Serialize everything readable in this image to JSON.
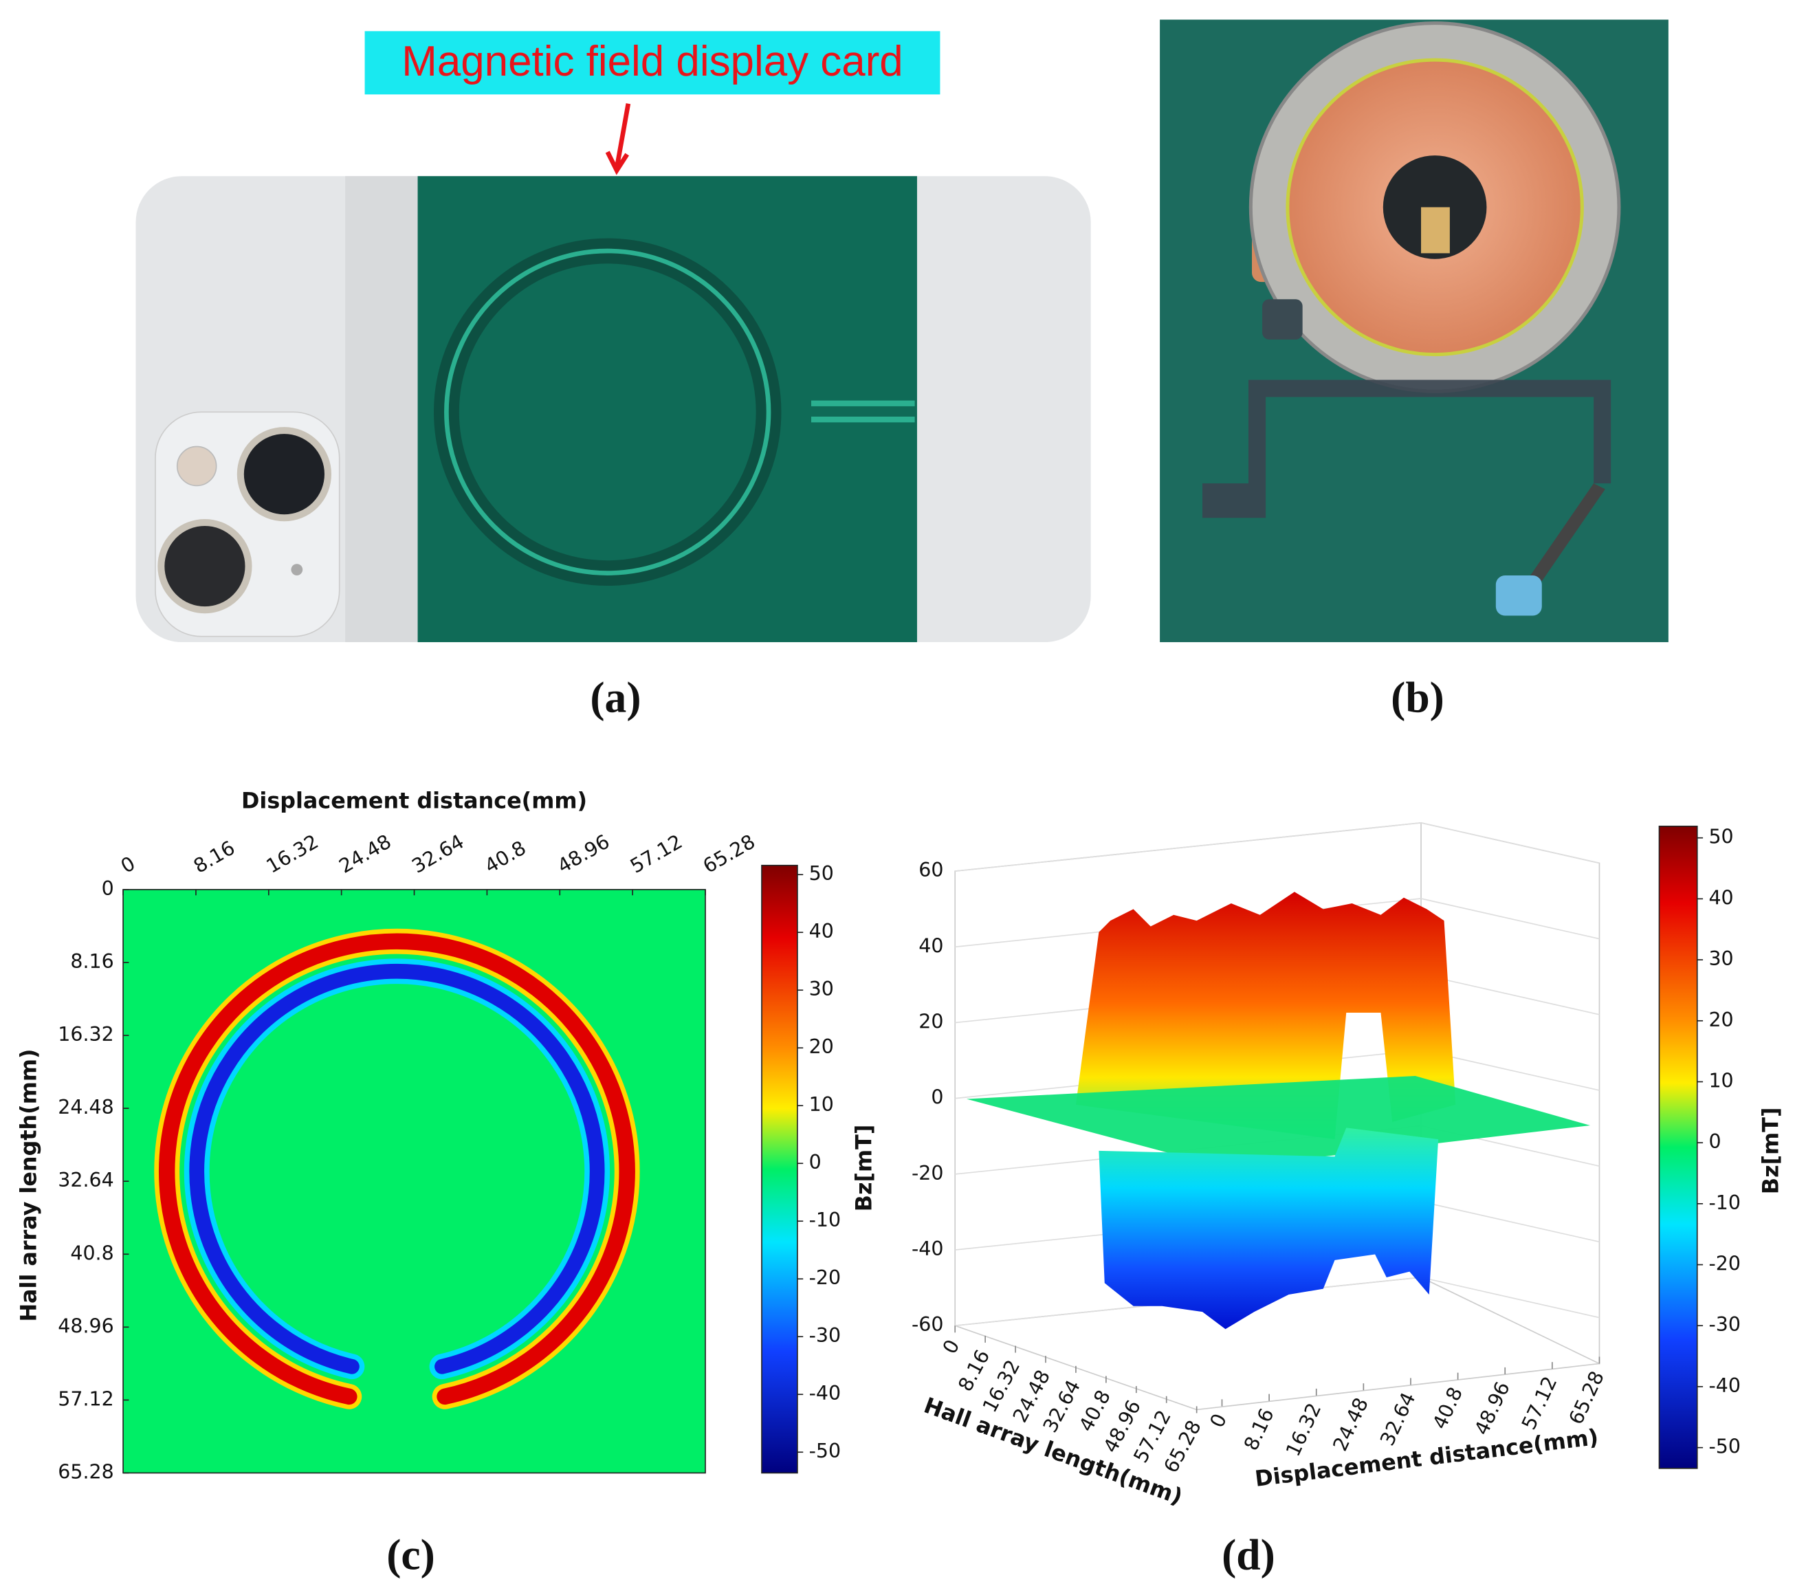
{
  "annotation": "Magnetic field display card",
  "panel_labels": [
    "(a)",
    "(b)",
    "(c)",
    "(d)"
  ],
  "chart_data": [
    {
      "type": "heatmap",
      "x_label": "Displacement distance(mm)",
      "y_label": "Hall array length(mm)",
      "colorbar_label": "Bz[mT]",
      "xlim": [
        0,
        65.28
      ],
      "xticks": [
        0,
        8.16,
        16.32,
        24.48,
        32.64,
        40.8,
        48.96,
        57.12,
        65.28
      ],
      "ylim": [
        0,
        65.28
      ],
      "yticks": [
        0,
        8.16,
        16.32,
        24.48,
        32.64,
        40.8,
        48.96,
        57.12,
        65.28
      ],
      "clim": [
        -53.6,
        51.6
      ],
      "cticks": [
        50,
        40,
        30,
        20,
        10,
        0,
        -10,
        -20,
        -30,
        -40,
        -50
      ]
    },
    {
      "type": "surface3d",
      "x_label": "Displacement distance(mm)",
      "y_label": "Hall array length(mm)",
      "colorbar_label": "Bz[mT]",
      "zlim": [
        -60,
        60
      ],
      "zticks": [
        60,
        40,
        20,
        0,
        -20,
        -40,
        -60
      ],
      "xlim": [
        0,
        65.28
      ],
      "xticks": [
        0,
        8.16,
        16.32,
        24.48,
        32.64,
        40.8,
        48.96,
        57.12,
        65.28
      ],
      "ylim": [
        0,
        65.28
      ],
      "yticks": [
        0,
        8.16,
        16.32,
        24.48,
        32.64,
        40.8,
        48.96,
        57.12,
        65.28
      ],
      "clim": [
        -53.4,
        51.9
      ],
      "cticks": [
        50,
        40,
        30,
        20,
        10,
        0,
        -10,
        -20,
        -30,
        -40,
        -50
      ]
    }
  ]
}
